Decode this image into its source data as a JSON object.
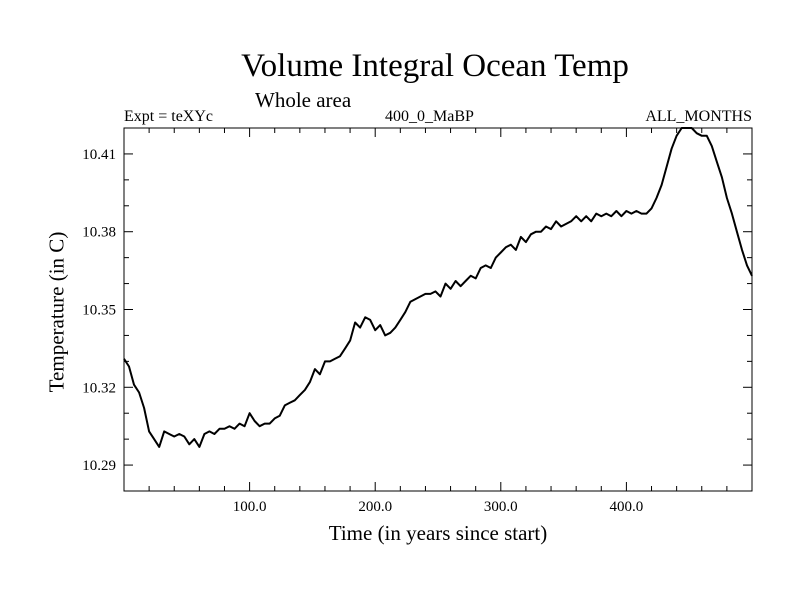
{
  "chart_data": {
    "type": "line",
    "title": "Volume Integral Ocean Temp",
    "subtitle": "Whole area",
    "left_string": "Expt = teXYc",
    "center_string": "400_0_MaBP",
    "right_string": "ALL_MONTHS",
    "xlabel": "Time (in years since start)",
    "ylabel": "Temperature (in C)",
    "xlim": [
      0,
      500
    ],
    "ylim": [
      10.28,
      10.42
    ],
    "xticks": [
      100,
      200,
      300,
      400
    ],
    "xtick_labels": [
      "100.0",
      "200.0",
      "300.0",
      "400.0"
    ],
    "yticks": [
      10.29,
      10.32,
      10.35,
      10.38,
      10.41
    ],
    "ytick_labels": [
      "10.29",
      "10.32",
      "10.35",
      "10.38",
      "10.41"
    ],
    "grid": false,
    "series": [
      {
        "color": "#000000",
        "x": [
          0,
          4,
          8,
          12,
          16,
          20,
          24,
          28,
          32,
          36,
          40,
          44,
          48,
          52,
          56,
          60,
          64,
          68,
          72,
          76,
          80,
          84,
          88,
          92,
          96,
          100,
          104,
          108,
          112,
          116,
          120,
          124,
          128,
          132,
          136,
          140,
          144,
          148,
          152,
          156,
          160,
          164,
          168,
          172,
          176,
          180,
          184,
          188,
          192,
          196,
          200,
          204,
          208,
          212,
          216,
          220,
          224,
          228,
          232,
          236,
          240,
          244,
          248,
          252,
          256,
          260,
          264,
          268,
          272,
          276,
          280,
          284,
          288,
          292,
          296,
          300,
          304,
          308,
          312,
          316,
          320,
          324,
          328,
          332,
          336,
          340,
          344,
          348,
          352,
          356,
          360,
          364,
          368,
          372,
          376,
          380,
          384,
          388,
          392,
          396,
          400,
          404,
          408,
          412,
          416,
          420,
          424,
          428,
          432,
          436,
          440,
          444,
          448,
          452,
          456,
          460,
          464,
          468,
          472,
          476,
          480,
          484,
          488,
          492,
          496,
          500
        ],
        "y": [
          10.331,
          10.328,
          10.321,
          10.318,
          10.312,
          10.303,
          10.3,
          10.297,
          10.303,
          10.302,
          10.301,
          10.302,
          10.301,
          10.298,
          10.3,
          10.297,
          10.302,
          10.303,
          10.302,
          10.304,
          10.304,
          10.305,
          10.304,
          10.306,
          10.305,
          10.31,
          10.307,
          10.305,
          10.306,
          10.306,
          10.308,
          10.309,
          10.313,
          10.314,
          10.315,
          10.317,
          10.319,
          10.322,
          10.327,
          10.325,
          10.33,
          10.33,
          10.331,
          10.332,
          10.335,
          10.338,
          10.345,
          10.343,
          10.347,
          10.346,
          10.342,
          10.344,
          10.34,
          10.341,
          10.343,
          10.346,
          10.349,
          10.353,
          10.354,
          10.355,
          10.356,
          10.356,
          10.357,
          10.355,
          10.36,
          10.358,
          10.361,
          10.359,
          10.361,
          10.363,
          10.362,
          10.366,
          10.367,
          10.366,
          10.37,
          10.372,
          10.374,
          10.375,
          10.373,
          10.378,
          10.376,
          10.379,
          10.38,
          10.38,
          10.382,
          10.381,
          10.384,
          10.382,
          10.383,
          10.384,
          10.386,
          10.384,
          10.386,
          10.384,
          10.387,
          10.386,
          10.387,
          10.386,
          10.388,
          10.386,
          10.388,
          10.387,
          10.388,
          10.387,
          10.387,
          10.389,
          10.393,
          10.398,
          10.405,
          10.412,
          10.417,
          10.42,
          10.42,
          10.42,
          10.418,
          10.417,
          10.417,
          10.413,
          10.407,
          10.401,
          10.393,
          10.387,
          10.38,
          10.373,
          10.367,
          10.363
        ]
      }
    ]
  }
}
